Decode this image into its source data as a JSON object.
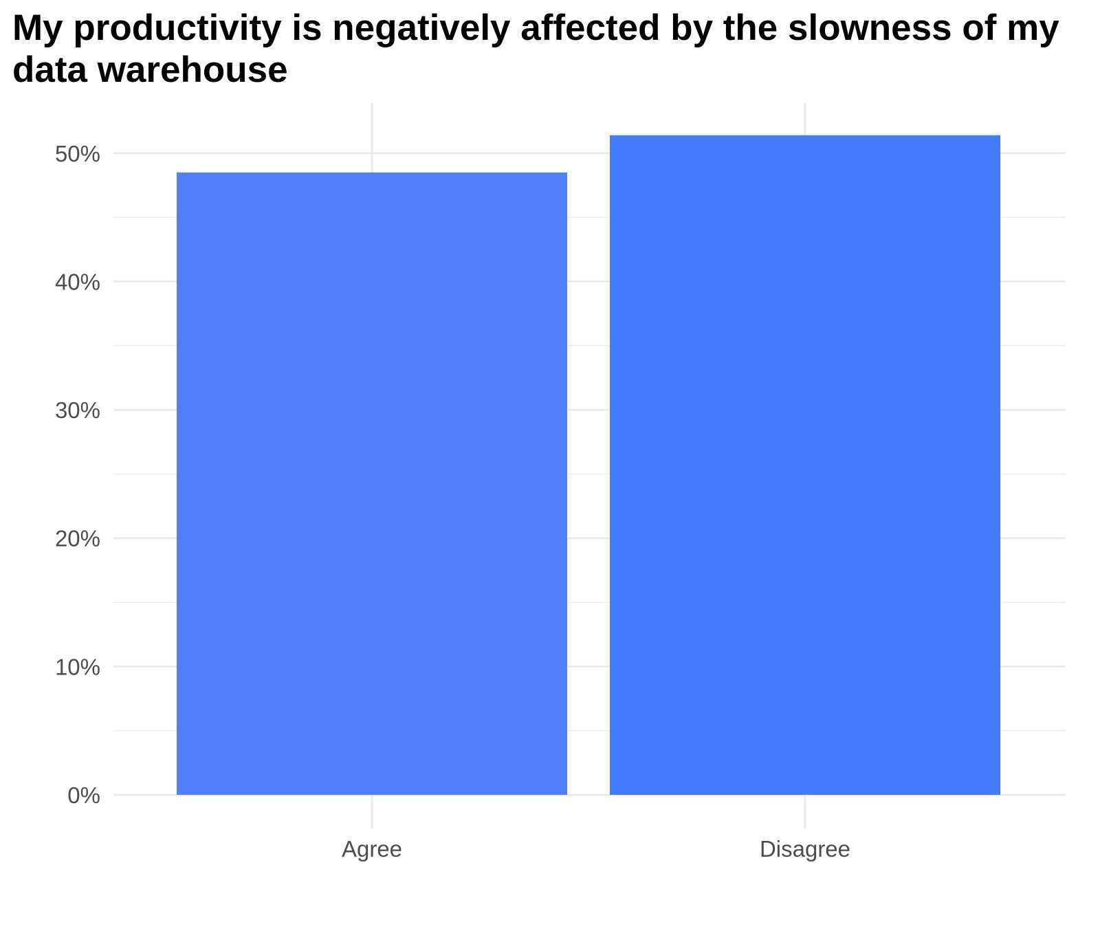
{
  "chart_data": {
    "type": "bar",
    "title": "My productivity is negatively affected by the slowness of my data warehouse",
    "xlabel": "",
    "ylabel": "",
    "categories": [
      "Agree",
      "Disagree"
    ],
    "values": [
      48.5,
      51.4
    ],
    "value_unit": "%",
    "bar_colors": [
      "#507ffb",
      "#437bfa"
    ],
    "ylim": [
      0,
      53.9
    ],
    "y_ticks": [
      0,
      10,
      20,
      30,
      40,
      50
    ],
    "y_tick_labels": [
      "0%",
      "10%",
      "20%",
      "30%",
      "40%",
      "50%"
    ],
    "y_minor_ticks": [
      5,
      15,
      25,
      35,
      45
    ],
    "grid": true,
    "grid_color": "#ebebeb",
    "legend": "none"
  }
}
